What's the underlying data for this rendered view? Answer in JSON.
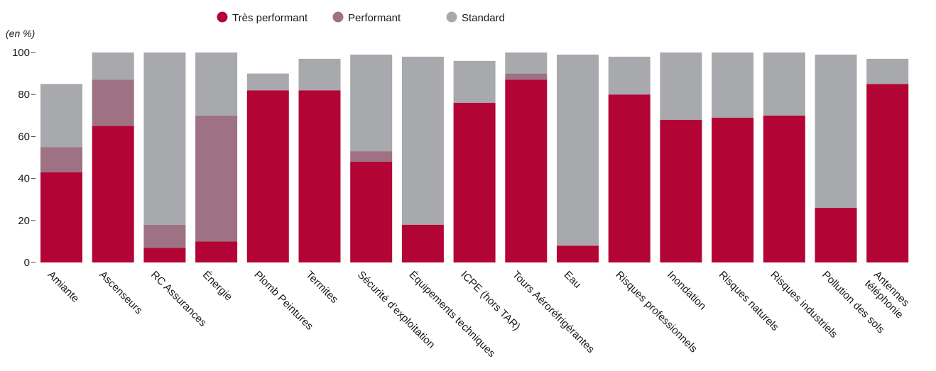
{
  "chart_data": {
    "type": "bar",
    "stacked": true,
    "unit_label": "(en %)",
    "ylim": [
      0,
      100
    ],
    "yticks": [
      0,
      20,
      40,
      60,
      80,
      100
    ],
    "grid": false,
    "legend_position": "top-center",
    "categories": [
      [
        "Amiante"
      ],
      [
        "Ascenseurs"
      ],
      [
        "RC Assurances"
      ],
      [
        "Énergie"
      ],
      [
        "Plomb Peintures"
      ],
      [
        "Termites"
      ],
      [
        "Sécurité d’exploitation"
      ],
      [
        "Équipements techniques"
      ],
      [
        "ICPE (hors TAR)"
      ],
      [
        "Tours Aéroréfrigérantes"
      ],
      [
        "Eau"
      ],
      [
        "Risques professionnels"
      ],
      [
        "Inondation"
      ],
      [
        "Risques naturels"
      ],
      [
        "Risques industriels"
      ],
      [
        "Pollution des sols"
      ],
      [
        "Antennes",
        "téléphonie"
      ]
    ],
    "series": [
      {
        "name": "Très performant",
        "color": "#b20435",
        "values": [
          43,
          65,
          7,
          10,
          82,
          82,
          48,
          18,
          76,
          87,
          8,
          80,
          68,
          69,
          70,
          26,
          85
        ]
      },
      {
        "name": "Performant",
        "color": "#9e7183",
        "values": [
          12,
          22,
          11,
          60,
          0,
          0,
          5,
          0,
          0,
          3,
          0,
          0,
          0,
          0,
          0,
          0,
          0
        ]
      },
      {
        "name": "Standard",
        "color": "#a8a9ad",
        "values": [
          30,
          13,
          82,
          30,
          8,
          15,
          46,
          80,
          20,
          10,
          91,
          18,
          32,
          31,
          30,
          73,
          12
        ]
      }
    ]
  }
}
